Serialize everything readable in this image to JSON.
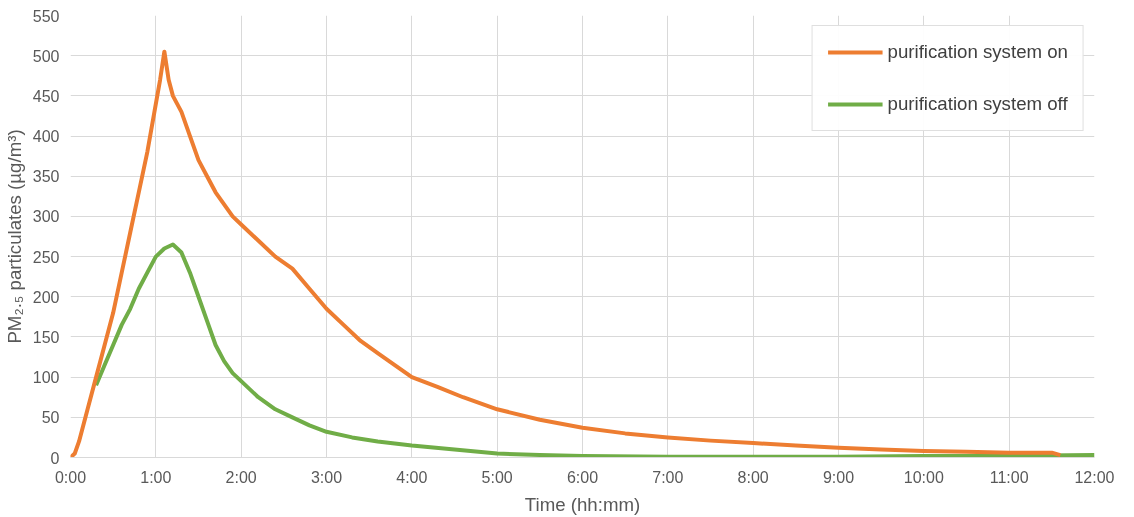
{
  "chart_data": {
    "type": "line",
    "xlabel": "Time (hh:mm)",
    "ylabel": "PM₂.₅ particulates (µg/m³)",
    "xlim": [
      0,
      12
    ],
    "xticks": [
      {
        "value": 0,
        "label": "0:00"
      },
      {
        "value": 1,
        "label": "1:00"
      },
      {
        "value": 2,
        "label": "2:00"
      },
      {
        "value": 3,
        "label": "3:00"
      },
      {
        "value": 4,
        "label": "4:00"
      },
      {
        "value": 5,
        "label": "5:00"
      },
      {
        "value": 6,
        "label": "6:00"
      },
      {
        "value": 7,
        "label": "7:00"
      },
      {
        "value": 8,
        "label": "8:00"
      },
      {
        "value": 9,
        "label": "9:00"
      },
      {
        "value": 10,
        "label": "10:00"
      },
      {
        "value": 11,
        "label": "11:00"
      },
      {
        "value": 12,
        "label": "12:00"
      }
    ],
    "ylim": [
      0,
      550
    ],
    "yticks": [
      0,
      50,
      100,
      150,
      200,
      250,
      300,
      350,
      400,
      450,
      500,
      550
    ],
    "grid": true,
    "legend": "top right",
    "marker": "none",
    "line_style": "solid",
    "series": [
      {
        "name": "purification system on",
        "color": "#ed7d31",
        "x": [
          0,
          0.05,
          0.1,
          0.2,
          0.3,
          0.4,
          0.5,
          0.6,
          0.7,
          0.8,
          0.9,
          1.0,
          1.05,
          1.1,
          1.15,
          1.2,
          1.3,
          1.4,
          1.5,
          1.6,
          1.7,
          1.8,
          1.9,
          2.0,
          2.2,
          2.4,
          2.6,
          2.8,
          3.0,
          3.2,
          3.4,
          3.6,
          3.8,
          4.0,
          4.3,
          4.6,
          5.0,
          5.5,
          6.0,
          6.5,
          7.0,
          7.5,
          8.0,
          8.5,
          9.0,
          9.5,
          10.0,
          10.5,
          11.0,
          11.5,
          11.6
        ],
        "values": [
          0,
          5,
          20,
          60,
          100,
          140,
          180,
          230,
          280,
          330,
          380,
          440,
          470,
          505,
          470,
          450,
          430,
          400,
          370,
          350,
          330,
          315,
          300,
          290,
          270,
          250,
          235,
          210,
          185,
          165,
          145,
          130,
          115,
          100,
          88,
          75,
          60,
          47,
          37,
          30,
          25,
          21,
          18,
          15,
          12,
          10,
          8,
          7,
          6,
          6,
          3
        ]
      },
      {
        "name": "purification system off",
        "color": "#70ad47",
        "x": [
          0.3,
          0.4,
          0.5,
          0.6,
          0.7,
          0.8,
          0.9,
          1.0,
          1.1,
          1.2,
          1.3,
          1.4,
          1.5,
          1.6,
          1.7,
          1.8,
          1.9,
          2.0,
          2.2,
          2.4,
          2.6,
          2.8,
          3.0,
          3.3,
          3.6,
          4.0,
          4.5,
          5.0,
          5.5,
          6.0,
          7.0,
          8.0,
          9.0,
          10.0,
          11.0,
          12.0
        ],
        "values": [
          90,
          115,
          140,
          165,
          185,
          210,
          230,
          250,
          260,
          265,
          255,
          230,
          200,
          170,
          140,
          120,
          105,
          95,
          75,
          60,
          50,
          40,
          32,
          25,
          20,
          15,
          10,
          5,
          3,
          2,
          1,
          1,
          1,
          2,
          2,
          3
        ]
      }
    ]
  }
}
